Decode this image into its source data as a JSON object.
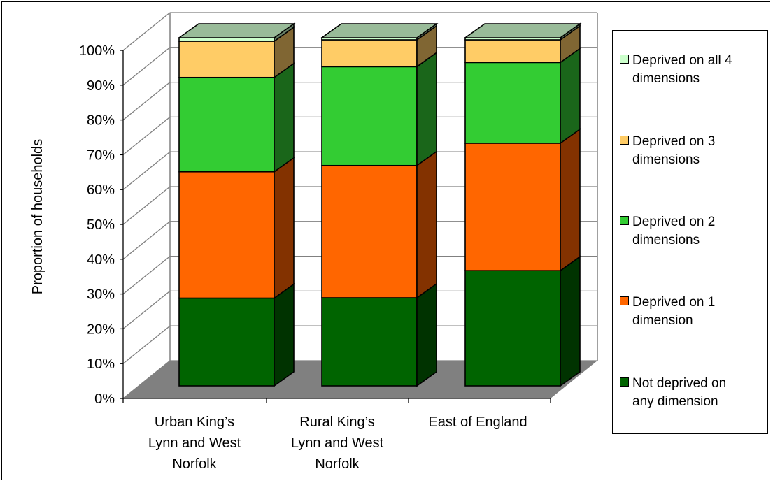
{
  "chart_data": {
    "type": "bar",
    "stacked": true,
    "three_d": true,
    "ylabel": "Proportion of households",
    "xlabel": "",
    "ylim": [
      0,
      100
    ],
    "yticks": [
      "0%",
      "10%",
      "20%",
      "30%",
      "40%",
      "50%",
      "60%",
      "70%",
      "80%",
      "90%",
      "100%"
    ],
    "categories": [
      [
        "Urban King’s",
        "Lynn and West",
        "Norfolk"
      ],
      [
        "Rural King’s",
        "Lynn and West",
        "Norfolk"
      ],
      [
        "East of England"
      ]
    ],
    "series": [
      {
        "name": "Not deprived on any dimension",
        "legend_lines": [
          "Not deprived on",
          "any dimension"
        ],
        "values": [
          25.2,
          25.3,
          33.1
        ],
        "color": "#006400",
        "side_color": "#003300"
      },
      {
        "name": "Deprived on 1 dimension",
        "legend_lines": [
          "Deprived on 1",
          "dimension"
        ],
        "values": [
          36.3,
          38.0,
          36.6
        ],
        "color": "#ff6600",
        "side_color": "#833200"
      },
      {
        "name": "Deprived on 2 dimensions",
        "legend_lines": [
          "Deprived on 2",
          "dimensions"
        ],
        "values": [
          27.1,
          28.4,
          23.2
        ],
        "color": "#33cc33",
        "side_color": "#1a661a"
      },
      {
        "name": "Deprived on 3 dimensions",
        "legend_lines": [
          "Deprived on 3",
          "dimensions"
        ],
        "values": [
          10.4,
          7.7,
          6.5
        ],
        "color": "#ffcc66",
        "side_color": "#806633"
      },
      {
        "name": "Deprived on all 4 dimensions",
        "legend_lines": [
          "Deprived on all 4",
          "dimensions"
        ],
        "values": [
          1.0,
          0.6,
          0.6
        ],
        "color": "#ccffcc",
        "side_color": "#668066"
      }
    ],
    "legend_position": "right",
    "colors": {
      "floor": "#808080",
      "top_face": "#99bb99",
      "wall_line": "#808080"
    }
  }
}
